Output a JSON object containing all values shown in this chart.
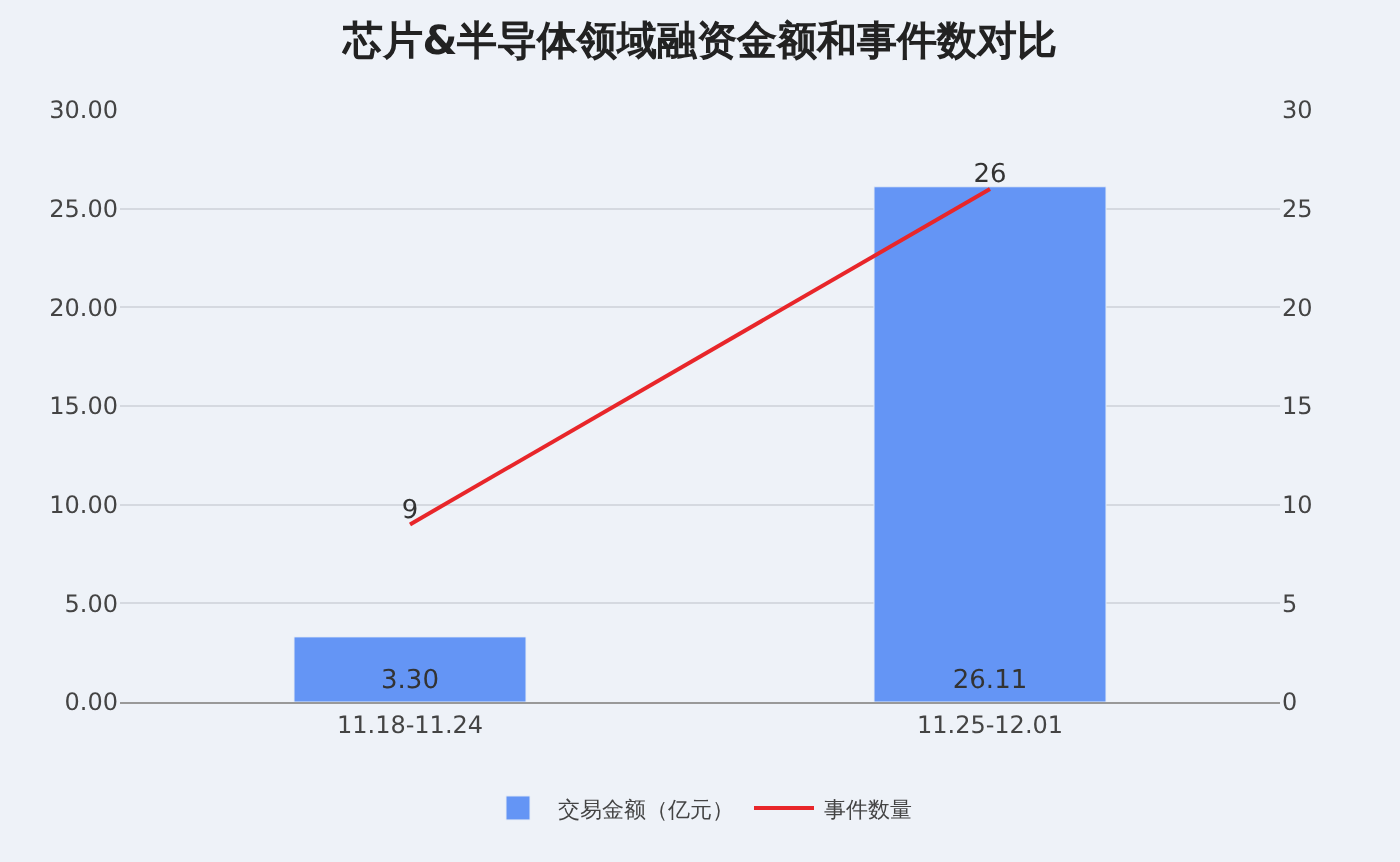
{
  "chart_data": {
    "type": "bar",
    "title": "芯片&半导体领域融资金额和事件数对比",
    "categories": [
      "11.18-11.24",
      "11.25-12.01"
    ],
    "series": [
      {
        "name": "交易金额（亿元）",
        "color": "#6495f5",
        "values": [
          3.3,
          26.11
        ],
        "value_labels": [
          "3.30",
          "26.11"
        ]
      },
      {
        "name": "事件数量",
        "type": "line",
        "axis": "y2",
        "color": "#e8262a",
        "values": [
          9,
          26
        ],
        "value_labels": [
          "9",
          "26"
        ]
      }
    ],
    "ylim": [
      0,
      30
    ],
    "yticks": [
      {
        "value": 0,
        "label": "0.00"
      },
      {
        "value": 5,
        "label": "5.00"
      },
      {
        "value": 10,
        "label": "10.00"
      },
      {
        "value": 15,
        "label": "15.00"
      },
      {
        "value": 20,
        "label": "20.00"
      },
      {
        "value": 25,
        "label": "25.00"
      },
      {
        "value": 30,
        "label": "30.00"
      }
    ],
    "y2lim": [
      0,
      30
    ],
    "y2ticks": [
      0,
      5,
      10,
      15,
      20,
      25,
      30
    ],
    "grid": "y",
    "legend": "bottom",
    "marker": "none",
    "line_style": "solid"
  }
}
